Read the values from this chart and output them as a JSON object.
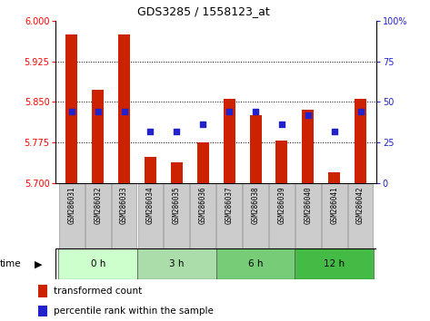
{
  "title": "GDS3285 / 1558123_at",
  "samples": [
    "GSM286031",
    "GSM286032",
    "GSM286033",
    "GSM286034",
    "GSM286035",
    "GSM286036",
    "GSM286037",
    "GSM286038",
    "GSM286039",
    "GSM286040",
    "GSM286041",
    "GSM286042"
  ],
  "bar_values": [
    5.975,
    5.872,
    5.975,
    5.748,
    5.738,
    5.775,
    5.855,
    5.825,
    5.778,
    5.835,
    5.72,
    5.855
  ],
  "percentile_values": [
    44,
    44,
    44,
    32,
    32,
    36,
    44,
    44,
    36,
    42,
    32,
    44
  ],
  "ymin": 5.7,
  "ymax": 6.0,
  "yticks_left": [
    5.7,
    5.775,
    5.85,
    5.925,
    6.0
  ],
  "right_yticks": [
    0,
    25,
    50,
    75,
    100
  ],
  "bar_color": "#cc2200",
  "dot_color": "#2222cc",
  "bar_bottom": 5.7,
  "groups": [
    {
      "label": "0 h",
      "start": 0,
      "end": 3,
      "color": "#ccffcc"
    },
    {
      "label": "3 h",
      "start": 3,
      "end": 6,
      "color": "#aaddaa"
    },
    {
      "label": "6 h",
      "start": 6,
      "end": 9,
      "color": "#77cc77"
    },
    {
      "label": "12 h",
      "start": 9,
      "end": 12,
      "color": "#44bb44"
    }
  ],
  "legend_bar_label": "transformed count",
  "legend_dot_label": "percentile rank within the sample",
  "sample_box_color": "#cccccc",
  "grid_linestyle": ":",
  "grid_color": "#000000",
  "grid_linewidth": 0.7,
  "bar_width": 0.45
}
